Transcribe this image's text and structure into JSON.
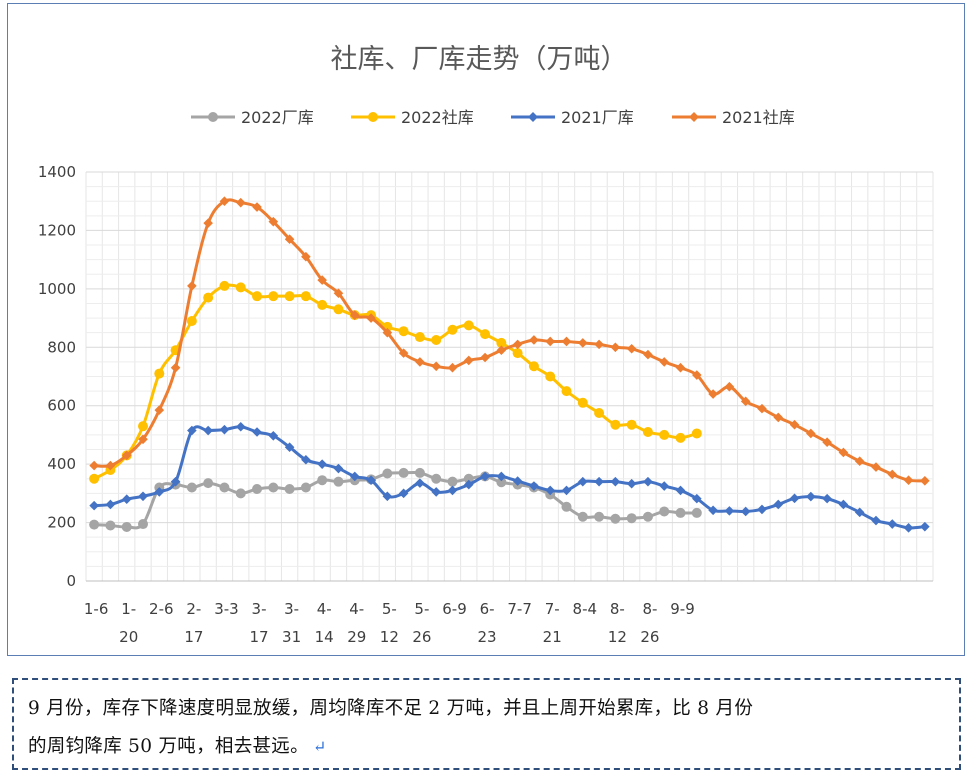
{
  "chart_data": {
    "type": "line",
    "title": "社库、厂库走势（万吨）",
    "legend_position": "top",
    "grid": true,
    "ylim": [
      0,
      1400
    ],
    "yticks": [
      "0",
      "200",
      "400",
      "600",
      "800",
      "1000",
      "1200",
      "1400"
    ],
    "x_tick_labels": [
      [
        "1-6",
        ""
      ],
      [
        "1-",
        "20"
      ],
      [
        "2-6",
        ""
      ],
      [
        "2-",
        "17"
      ],
      [
        "3-3",
        ""
      ],
      [
        "3-",
        "17"
      ],
      [
        "3-",
        "31"
      ],
      [
        "4-",
        "14"
      ],
      [
        "4-",
        "29"
      ],
      [
        "5-",
        "12"
      ],
      [
        "5-",
        "26"
      ],
      [
        "6-9",
        ""
      ],
      [
        "6-",
        "23"
      ],
      [
        "7-7",
        ""
      ],
      [
        "7-",
        "21"
      ],
      [
        "8-4",
        ""
      ],
      [
        "8-",
        "12"
      ],
      [
        "8-",
        "26"
      ],
      [
        "9-9",
        ""
      ]
    ],
    "series": [
      {
        "name": "2022厂库",
        "color": "#a5a5a5",
        "marker": "circle",
        "values": [
          193,
          190,
          185,
          195,
          320,
          330,
          320,
          335,
          320,
          300,
          315,
          320,
          315,
          320,
          345,
          340,
          345,
          348,
          368,
          370,
          370,
          350,
          340,
          350,
          358,
          338,
          330,
          320,
          296,
          254,
          220,
          220,
          213,
          215,
          220,
          238,
          233,
          233
        ]
      },
      {
        "name": "2022社库",
        "color": "#ffc000",
        "marker": "circle",
        "values": [
          350,
          380,
          430,
          530,
          710,
          790,
          890,
          970,
          1010,
          1005,
          975,
          975,
          975,
          975,
          945,
          930,
          910,
          910,
          870,
          855,
          835,
          825,
          860,
          875,
          845,
          815,
          780,
          735,
          700,
          650,
          610,
          575,
          535,
          535,
          510,
          500,
          490,
          505
        ]
      },
      {
        "name": "2021厂库",
        "color": "#4472c4",
        "marker": "diamond",
        "values": [
          258,
          262,
          280,
          290,
          305,
          340,
          515,
          515,
          518,
          528,
          510,
          497,
          458,
          415,
          400,
          385,
          358,
          345,
          290,
          300,
          335,
          305,
          310,
          330,
          358,
          358,
          342,
          325,
          310,
          310,
          340,
          340,
          340,
          333,
          340,
          325,
          310,
          282,
          242,
          240,
          238,
          245,
          262,
          283,
          289,
          282,
          262,
          235,
          207,
          195,
          182,
          186
        ]
      },
      {
        "name": "2021社库",
        "color": "#ed7d31",
        "marker": "diamond",
        "values": [
          395,
          395,
          430,
          485,
          585,
          730,
          1010,
          1225,
          1300,
          1295,
          1280,
          1230,
          1170,
          1110,
          1030,
          985,
          910,
          900,
          850,
          780,
          750,
          735,
          730,
          755,
          765,
          790,
          810,
          825,
          820,
          820,
          815,
          810,
          800,
          795,
          775,
          750,
          730,
          705,
          640,
          665,
          615,
          590,
          560,
          535,
          505,
          475,
          440,
          410,
          390,
          365,
          345,
          343
        ]
      }
    ]
  },
  "note": {
    "line1": "9 月份，库存下降速度明显放缓，周均降库不足 2 万吨，并且上周开始累库，比 8 月份",
    "line2": "的周钧降库 50 万吨，相去甚远。",
    "return_symbol": "↵"
  }
}
